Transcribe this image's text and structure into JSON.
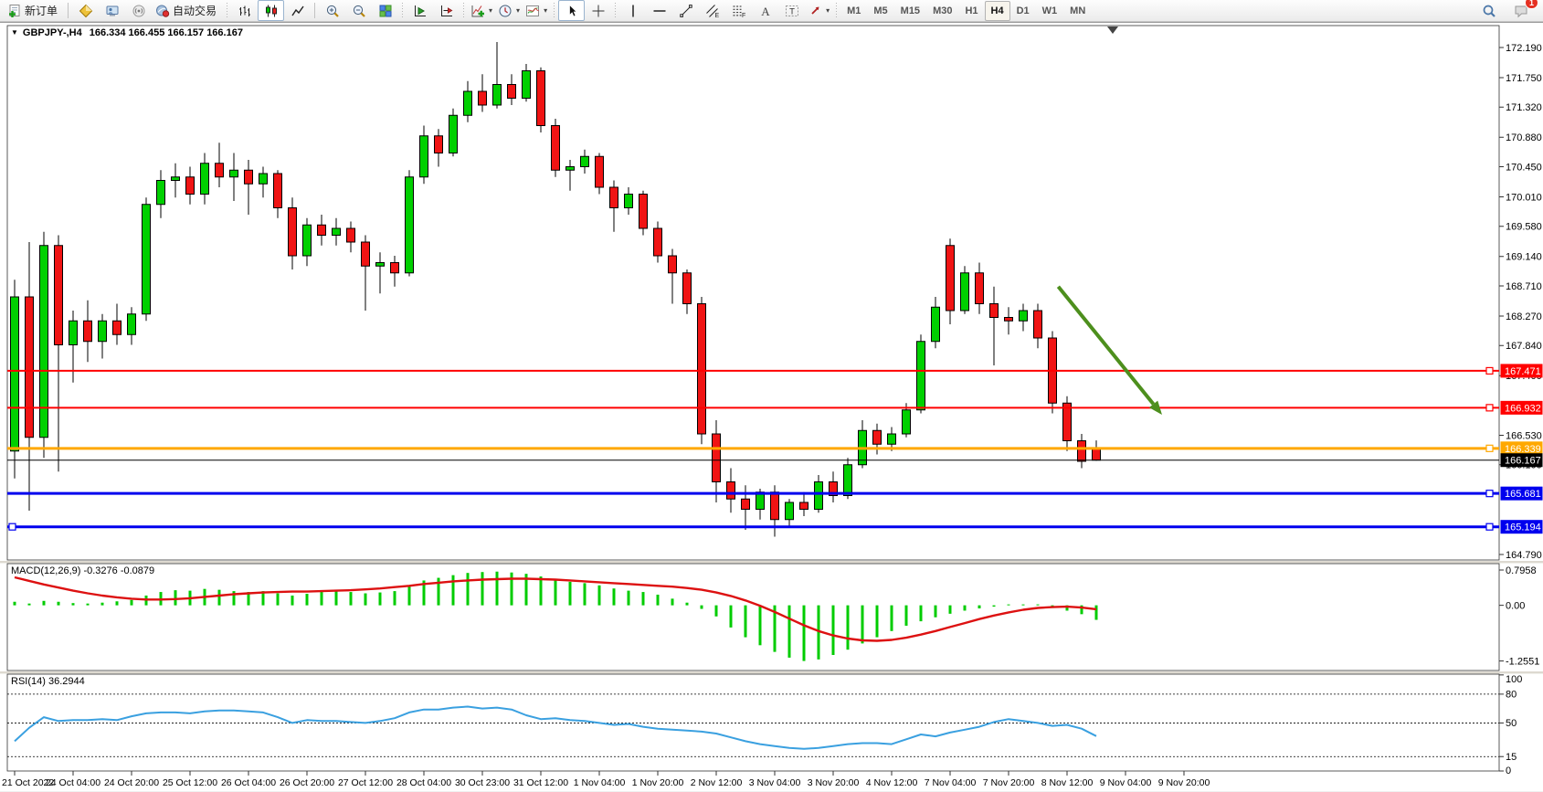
{
  "toolbar": {
    "groups": [
      [
        {
          "name": "new-order",
          "label": "新订单"
        }
      ],
      [
        {
          "name": "metaeditor"
        },
        {
          "name": "terminal"
        },
        {
          "name": "signals"
        },
        {
          "name": "autotrading",
          "label": "自动交易"
        }
      ],
      [
        {
          "name": "bar-chart"
        },
        {
          "name": "candlestick-chart",
          "active": true
        },
        {
          "name": "line-chart"
        }
      ],
      [
        {
          "name": "zoom-in"
        },
        {
          "name": "zoom-out"
        },
        {
          "name": "tile-windows"
        }
      ],
      [
        {
          "name": "auto-scroll"
        },
        {
          "name": "chart-shift"
        }
      ],
      [
        {
          "name": "indicators",
          "dropdown": true
        },
        {
          "name": "periods",
          "dropdown": true
        },
        {
          "name": "templates",
          "dropdown": true
        }
      ],
      [
        {
          "name": "cursor",
          "active": true
        },
        {
          "name": "crosshair"
        }
      ],
      [
        {
          "name": "vertical-line"
        },
        {
          "name": "horizontal-line"
        },
        {
          "name": "trendline"
        },
        {
          "name": "equidistant-channel"
        },
        {
          "name": "fibonacci"
        },
        {
          "name": "text"
        },
        {
          "name": "text-label"
        },
        {
          "name": "arrows",
          "dropdown": true
        }
      ]
    ],
    "timeframes": [
      {
        "label": "M1"
      },
      {
        "label": "M5"
      },
      {
        "label": "M15"
      },
      {
        "label": "M30"
      },
      {
        "label": "H1"
      },
      {
        "label": "H4",
        "active": true
      },
      {
        "label": "D1"
      },
      {
        "label": "W1"
      },
      {
        "label": "MN"
      }
    ],
    "right_icons": [
      {
        "name": "search"
      },
      {
        "name": "notifications",
        "badge": "1"
      }
    ]
  },
  "chart": {
    "symbol_period": "GBPJPY-,H4",
    "ohlc_text": "166.334 166.455 166.157 166.167",
    "collapse_arrow": "▼"
  },
  "chart_data": {
    "type": "candlestick",
    "title": "GBPJPY-,H4 166.334 166.455 166.157 166.167",
    "timeframe": "H4",
    "price_pane": {
      "ylim": [
        164.71,
        172.51
      ],
      "axis_labels": [
        172.19,
        171.75,
        171.32,
        170.88,
        170.45,
        170.01,
        169.58,
        169.14,
        168.71,
        168.27,
        167.84,
        167.4,
        166.53,
        166.1,
        164.79
      ]
    },
    "candles": [
      [
        166.3,
        168.8,
        165.9,
        168.55
      ],
      [
        168.55,
        169.35,
        165.43,
        166.5
      ],
      [
        166.5,
        169.5,
        166.2,
        169.3
      ],
      [
        169.3,
        169.45,
        166.0,
        167.85
      ],
      [
        167.85,
        168.35,
        167.3,
        168.2
      ],
      [
        168.2,
        168.5,
        167.6,
        167.9
      ],
      [
        167.9,
        168.3,
        167.65,
        168.2
      ],
      [
        168.2,
        168.45,
        167.85,
        168.0
      ],
      [
        168.0,
        168.4,
        167.85,
        168.3
      ],
      [
        168.3,
        170.0,
        168.2,
        169.9
      ],
      [
        169.9,
        170.4,
        169.7,
        170.25
      ],
      [
        170.25,
        170.5,
        170.0,
        170.3
      ],
      [
        170.3,
        170.45,
        169.9,
        170.05
      ],
      [
        170.05,
        170.65,
        169.9,
        170.5
      ],
      [
        170.5,
        170.8,
        170.15,
        170.3
      ],
      [
        170.3,
        170.65,
        169.95,
        170.4
      ],
      [
        170.4,
        170.55,
        169.75,
        170.2
      ],
      [
        170.2,
        170.45,
        170.0,
        170.35
      ],
      [
        170.35,
        170.4,
        169.7,
        169.85
      ],
      [
        169.85,
        170.0,
        168.95,
        169.15
      ],
      [
        169.15,
        169.7,
        169.0,
        169.6
      ],
      [
        169.6,
        169.75,
        169.3,
        169.45
      ],
      [
        169.45,
        169.7,
        169.3,
        169.55
      ],
      [
        169.55,
        169.65,
        169.2,
        169.35
      ],
      [
        169.35,
        169.45,
        168.35,
        169.0
      ],
      [
        169.0,
        169.2,
        168.6,
        169.05
      ],
      [
        169.05,
        169.15,
        168.7,
        168.9
      ],
      [
        168.9,
        170.4,
        168.85,
        170.3
      ],
      [
        170.3,
        171.05,
        170.2,
        170.9
      ],
      [
        170.9,
        171.0,
        170.45,
        170.65
      ],
      [
        170.65,
        171.3,
        170.6,
        171.2
      ],
      [
        171.2,
        171.7,
        171.1,
        171.55
      ],
      [
        171.55,
        171.8,
        171.25,
        171.35
      ],
      [
        171.35,
        172.27,
        171.3,
        171.65
      ],
      [
        171.65,
        171.8,
        171.35,
        171.45
      ],
      [
        171.45,
        171.95,
        171.4,
        171.85
      ],
      [
        171.85,
        171.9,
        170.95,
        171.05
      ],
      [
        171.05,
        171.15,
        170.3,
        170.4
      ],
      [
        170.4,
        170.55,
        170.1,
        170.45
      ],
      [
        170.45,
        170.7,
        170.35,
        170.6
      ],
      [
        170.6,
        170.65,
        170.05,
        170.15
      ],
      [
        170.15,
        170.25,
        169.5,
        169.85
      ],
      [
        169.85,
        170.15,
        169.75,
        170.05
      ],
      [
        170.05,
        170.1,
        169.45,
        169.55
      ],
      [
        169.55,
        169.65,
        169.05,
        169.15
      ],
      [
        169.15,
        169.25,
        168.45,
        168.9
      ],
      [
        168.9,
        168.95,
        168.3,
        168.45
      ],
      [
        168.45,
        168.55,
        166.4,
        166.55
      ],
      [
        166.55,
        166.75,
        165.55,
        165.85
      ],
      [
        165.85,
        166.05,
        165.4,
        165.6
      ],
      [
        165.6,
        165.8,
        165.15,
        165.45
      ],
      [
        165.45,
        165.75,
        165.3,
        165.7
      ],
      [
        165.7,
        165.8,
        165.05,
        165.3
      ],
      [
        165.3,
        165.6,
        165.19,
        165.55
      ],
      [
        165.55,
        165.7,
        165.35,
        165.45
      ],
      [
        165.45,
        165.95,
        165.4,
        165.85
      ],
      [
        165.85,
        166.0,
        165.55,
        165.65
      ],
      [
        165.65,
        166.2,
        165.6,
        166.1
      ],
      [
        166.1,
        166.75,
        166.05,
        166.6
      ],
      [
        166.6,
        166.7,
        166.25,
        166.4
      ],
      [
        166.4,
        166.65,
        166.3,
        166.55
      ],
      [
        166.55,
        167.0,
        166.5,
        166.9
      ],
      [
        166.9,
        168.0,
        166.85,
        167.9
      ],
      [
        167.9,
        168.55,
        167.8,
        168.4
      ],
      [
        169.3,
        169.4,
        168.15,
        168.35
      ],
      [
        168.35,
        169.0,
        168.3,
        168.9
      ],
      [
        168.9,
        169.05,
        168.3,
        168.45
      ],
      [
        168.45,
        168.7,
        167.55,
        168.25
      ],
      [
        168.25,
        168.4,
        168.0,
        168.2
      ],
      [
        168.2,
        168.45,
        168.05,
        168.35
      ],
      [
        168.35,
        168.45,
        167.8,
        167.95
      ],
      [
        167.95,
        168.05,
        166.85,
        167.0
      ],
      [
        167.0,
        167.1,
        166.3,
        166.45
      ],
      [
        166.45,
        166.55,
        166.05,
        166.15
      ],
      [
        166.334,
        166.455,
        166.157,
        166.167
      ]
    ],
    "hlines": [
      {
        "value": 167.471,
        "color": "#ff0000",
        "width": 2
      },
      {
        "value": 166.932,
        "color": "#ff0000",
        "width": 2
      },
      {
        "value": 166.339,
        "color": "#ffa800",
        "width": 3
      },
      {
        "value": 166.167,
        "color": "#000000",
        "width": 1
      },
      {
        "value": 165.681,
        "color": "#0000ee",
        "width": 3
      },
      {
        "value": 165.194,
        "color": "#0000ee",
        "width": 3,
        "left_marker": true
      }
    ],
    "arrow": {
      "from_index": 71.4,
      "from_price": 168.7,
      "to_index": 78.5,
      "to_price": 166.83,
      "color": "#4d8f1d"
    },
    "macd": {
      "label": "MACD(12,26,9) -0.3276 -0.0879",
      "ylim": [
        -1.47,
        0.94
      ],
      "axis_labels": [
        {
          "v": 0.7958,
          "t": "0.7958"
        },
        {
          "v": 0,
          "t": "0.00"
        },
        {
          "v": -1.2551,
          "t": "-1.2551"
        }
      ],
      "hist_color": "#00cc00",
      "signal_color": "#dd1111",
      "hist": [
        0.08,
        0.04,
        0.1,
        0.08,
        0.05,
        0.04,
        0.06,
        0.09,
        0.12,
        0.22,
        0.3,
        0.34,
        0.33,
        0.37,
        0.35,
        0.32,
        0.3,
        0.32,
        0.27,
        0.22,
        0.26,
        0.3,
        0.32,
        0.3,
        0.27,
        0.29,
        0.32,
        0.45,
        0.56,
        0.62,
        0.68,
        0.73,
        0.75,
        0.76,
        0.74,
        0.71,
        0.65,
        0.58,
        0.53,
        0.5,
        0.45,
        0.38,
        0.33,
        0.3,
        0.24,
        0.15,
        0.06,
        -0.08,
        -0.25,
        -0.5,
        -0.72,
        -0.9,
        -1.05,
        -1.18,
        -1.2551,
        -1.22,
        -1.12,
        -1.0,
        -0.86,
        -0.72,
        -0.58,
        -0.46,
        -0.36,
        -0.27,
        -0.19,
        -0.12,
        -0.07,
        -0.03,
        0.0,
        0.02,
        -0.02,
        -0.06,
        -0.12,
        -0.2,
        -0.3276
      ],
      "signal": [
        0.63,
        0.55,
        0.47,
        0.4,
        0.33,
        0.27,
        0.22,
        0.18,
        0.15,
        0.13,
        0.13,
        0.14,
        0.16,
        0.19,
        0.22,
        0.25,
        0.27,
        0.29,
        0.3,
        0.31,
        0.31,
        0.32,
        0.33,
        0.34,
        0.36,
        0.38,
        0.41,
        0.44,
        0.48,
        0.51,
        0.54,
        0.56,
        0.58,
        0.59,
        0.6,
        0.6,
        0.59,
        0.58,
        0.56,
        0.54,
        0.52,
        0.5,
        0.48,
        0.46,
        0.44,
        0.42,
        0.39,
        0.35,
        0.29,
        0.21,
        0.11,
        -0.01,
        -0.15,
        -0.3,
        -0.45,
        -0.58,
        -0.68,
        -0.75,
        -0.79,
        -0.8,
        -0.78,
        -0.73,
        -0.66,
        -0.58,
        -0.49,
        -0.4,
        -0.31,
        -0.23,
        -0.16,
        -0.1,
        -0.06,
        -0.04,
        -0.03,
        -0.05,
        -0.0879
      ]
    },
    "rsi": {
      "label": "RSI(14) 36.2944",
      "ylim": [
        0,
        100.8
      ],
      "levels": [
        80,
        50,
        15
      ],
      "axis_labels": [
        {
          "v": 100,
          "t": "100"
        },
        {
          "v": 80,
          "t": "80"
        },
        {
          "v": 50,
          "t": "50"
        },
        {
          "v": 15,
          "t": "15"
        },
        {
          "v": 0,
          "t": "0"
        }
      ],
      "line_color": "#3aa0e0",
      "values": [
        31,
        45,
        56,
        52,
        53,
        53,
        54,
        53,
        57,
        60,
        61,
        61,
        60,
        62,
        63,
        63,
        62,
        61,
        56,
        50,
        53,
        52,
        52,
        51,
        50,
        52,
        55,
        61,
        64,
        64,
        66,
        67,
        65,
        66,
        64,
        58,
        54,
        55,
        53,
        52,
        50,
        48,
        49,
        46,
        44,
        43,
        42,
        41,
        39,
        35,
        31,
        28,
        26,
        24,
        23,
        24,
        26,
        28,
        29,
        29,
        28,
        33,
        38,
        36,
        40,
        43,
        46,
        51,
        54,
        52,
        50,
        47,
        48,
        44,
        36.3
      ]
    },
    "time_axis": [
      "21 Oct 2022",
      "24 Oct 04:00",
      "24 Oct 20:00",
      "25 Oct 12:00",
      "26 Oct 04:00",
      "26 Oct 20:00",
      "27 Oct 12:00",
      "28 Oct 04:00",
      "30 Oct 23:00",
      "31 Oct 12:00",
      "1 Nov 04:00",
      "1 Nov 20:00",
      "2 Nov 12:00",
      "3 Nov 04:00",
      "3 Nov 20:00",
      "4 Nov 12:00",
      "7 Nov 04:00",
      "7 Nov 20:00",
      "8 Nov 12:00",
      "9 Nov 04:00",
      "9 Nov 20:00"
    ],
    "colors": {
      "bull": "#00d000",
      "bear": "#f01414",
      "wick": "#000000",
      "background": "#ffffff"
    }
  }
}
